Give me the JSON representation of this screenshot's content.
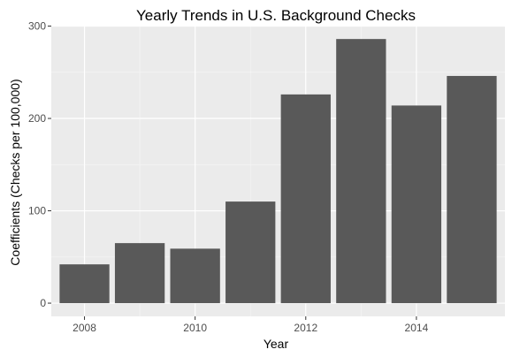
{
  "chart_data": {
    "type": "bar",
    "title": "Yearly Trends in U.S. Background Checks",
    "xlabel": "Year",
    "ylabel": "Coefficients (Checks per 100,000)",
    "x": [
      2008,
      2009,
      2010,
      2011,
      2012,
      2013,
      2014,
      2015
    ],
    "values": [
      42,
      65,
      59,
      110,
      226,
      286,
      214,
      246
    ],
    "x_ticks": [
      2008,
      2010,
      2012,
      2014
    ],
    "y_ticks": [
      0,
      100,
      200,
      300
    ],
    "xlim": [
      2007.4,
      2015.6
    ],
    "ylim": [
      -14.3,
      300.5
    ],
    "grid": true,
    "colors": {
      "bar": "#595959",
      "panel": "#ebebeb",
      "grid_major": "#ffffff",
      "grid_minor": "#f5f5f5",
      "tick_text": "#4d4d4d"
    }
  }
}
